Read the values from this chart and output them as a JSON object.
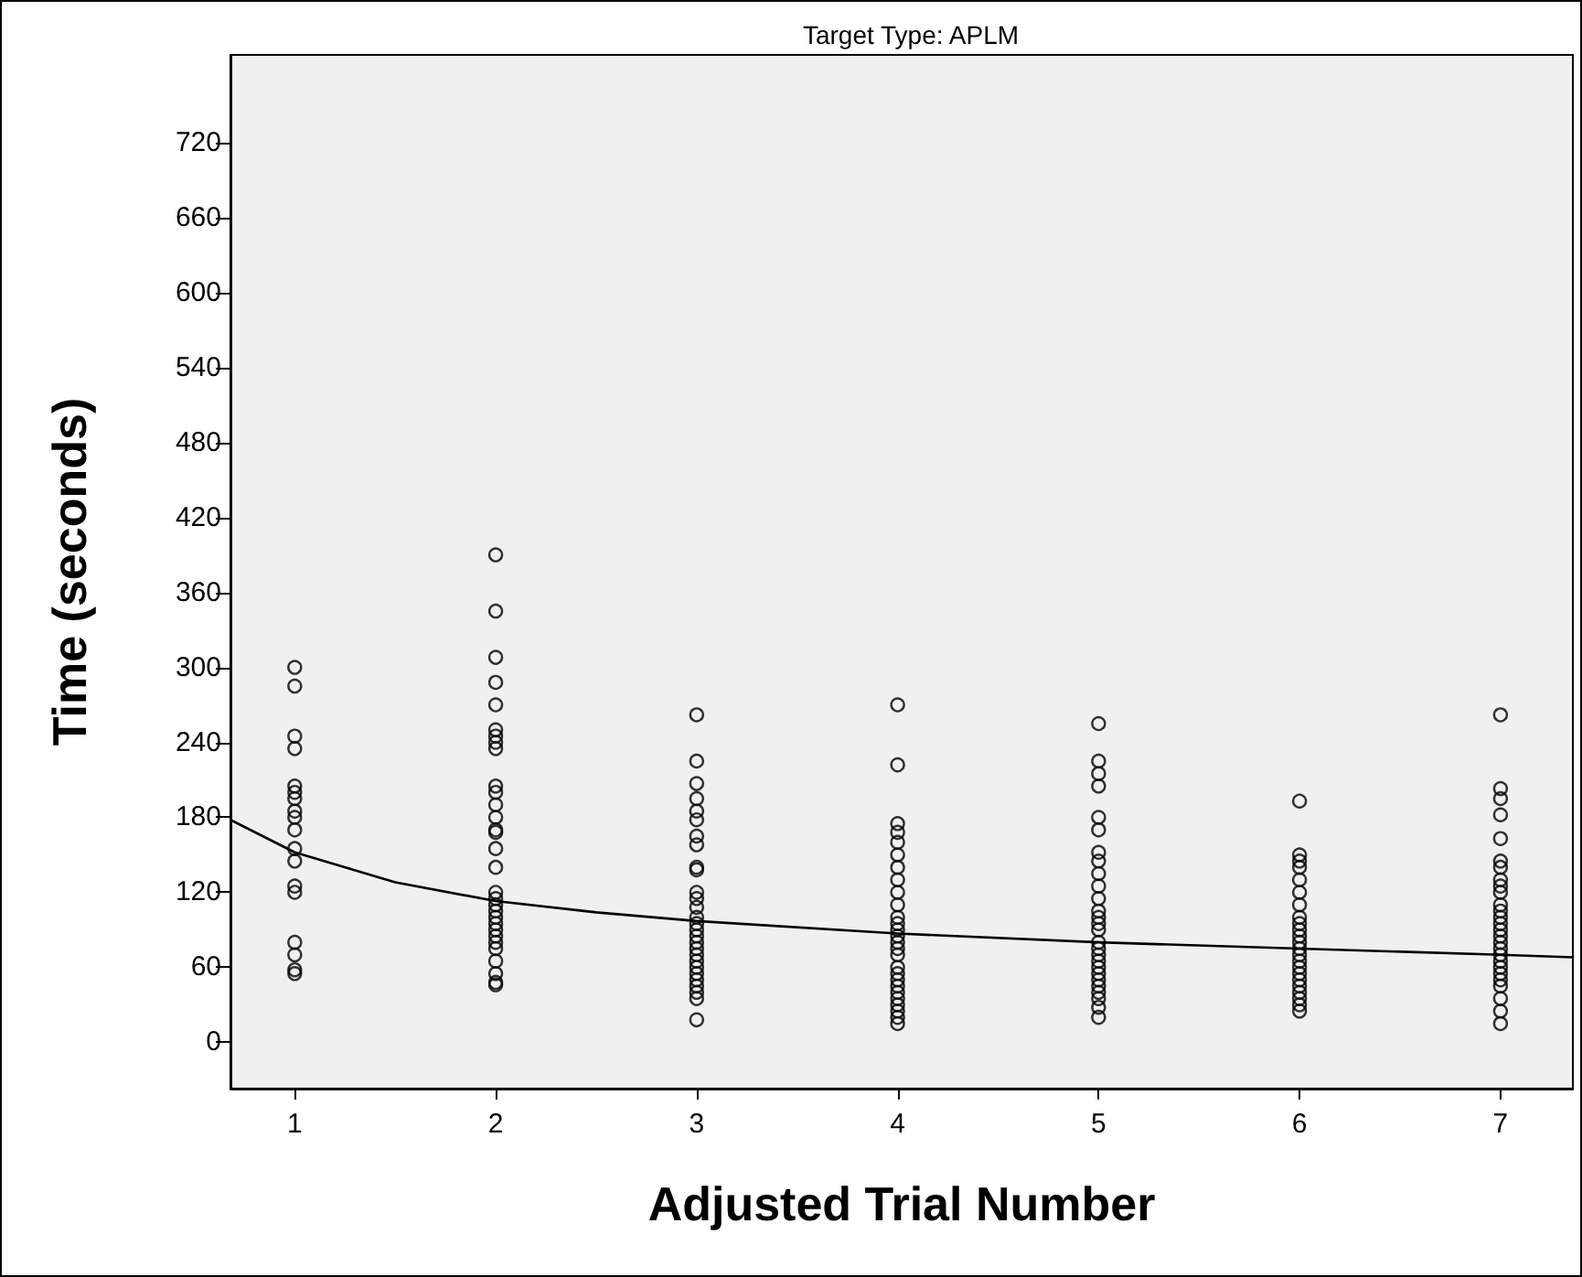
{
  "chart_data": {
    "type": "scatter",
    "title": "Target Type: APLM",
    "xlabel": "Adjusted Trial Number",
    "ylabel": "Time (seconds)",
    "series": [
      {
        "color": "#000000",
        "x": [
          1,
          1,
          1,
          1,
          1,
          1,
          1,
          1,
          1,
          1,
          1,
          1,
          1,
          1,
          1,
          1,
          1,
          1
        ],
        "values": [
          300,
          285,
          245,
          235,
          205,
          200,
          195,
          185,
          180,
          170,
          155,
          145,
          125,
          120,
          80,
          70,
          58,
          55
        ]
      },
      {
        "color": "#000000",
        "x": [
          2,
          2,
          2,
          2,
          2,
          2,
          2,
          2,
          2,
          2,
          2,
          2,
          2,
          2,
          2,
          2,
          2,
          2,
          2,
          2,
          2,
          2,
          2,
          2,
          2,
          2,
          2,
          2,
          2,
          2,
          2
        ],
        "values": [
          390,
          345,
          308,
          288,
          270,
          250,
          245,
          240,
          235,
          205,
          200,
          190,
          180,
          170,
          168,
          155,
          140,
          120,
          115,
          110,
          105,
          100,
          95,
          90,
          85,
          80,
          75,
          65,
          55,
          48,
          46
        ]
      },
      {
        "color": "#000000",
        "x": [
          3,
          3,
          3,
          3,
          3,
          3,
          3,
          3,
          3,
          3,
          3,
          3,
          3,
          3,
          3,
          3,
          3,
          3,
          3,
          3,
          3,
          3,
          3,
          3,
          3,
          3,
          3,
          3
        ],
        "values": [
          262,
          225,
          207,
          195,
          185,
          178,
          165,
          158,
          140,
          138,
          120,
          115,
          108,
          100,
          95,
          90,
          85,
          80,
          75,
          70,
          65,
          60,
          55,
          50,
          45,
          40,
          35,
          18
        ]
      },
      {
        "color": "#000000",
        "x": [
          4,
          4,
          4,
          4,
          4,
          4,
          4,
          4,
          4,
          4,
          4,
          4,
          4,
          4,
          4,
          4,
          4,
          4,
          4,
          4,
          4,
          4,
          4,
          4,
          4,
          4,
          4
        ],
        "values": [
          270,
          222,
          175,
          168,
          160,
          150,
          140,
          130,
          120,
          110,
          100,
          95,
          90,
          85,
          80,
          75,
          70,
          60,
          55,
          50,
          45,
          40,
          35,
          30,
          25,
          20,
          15
        ]
      },
      {
        "color": "#000000",
        "x": [
          5,
          5,
          5,
          5,
          5,
          5,
          5,
          5,
          5,
          5,
          5,
          5,
          5,
          5,
          5,
          5,
          5,
          5,
          5,
          5,
          5,
          5,
          5,
          5,
          5,
          5,
          5
        ],
        "values": [
          255,
          225,
          215,
          205,
          180,
          170,
          152,
          145,
          135,
          125,
          115,
          105,
          100,
          95,
          90,
          80,
          75,
          70,
          65,
          60,
          55,
          50,
          45,
          40,
          35,
          28,
          20
        ]
      },
      {
        "color": "#000000",
        "x": [
          6,
          6,
          6,
          6,
          6,
          6,
          6,
          6,
          6,
          6,
          6,
          6,
          6,
          6,
          6,
          6,
          6,
          6,
          6,
          6,
          6,
          6,
          6
        ],
        "values": [
          193,
          150,
          145,
          140,
          130,
          120,
          110,
          100,
          95,
          90,
          85,
          80,
          75,
          70,
          65,
          60,
          55,
          50,
          45,
          40,
          35,
          30,
          25
        ]
      },
      {
        "color": "#000000",
        "x": [
          7,
          7,
          7,
          7,
          7,
          7,
          7,
          7,
          7,
          7,
          7,
          7,
          7,
          7,
          7,
          7,
          7,
          7,
          7,
          7,
          7,
          7,
          7,
          7,
          7,
          7,
          7
        ],
        "values": [
          262,
          203,
          195,
          182,
          163,
          145,
          140,
          130,
          125,
          120,
          110,
          105,
          100,
          95,
          90,
          85,
          80,
          75,
          70,
          65,
          60,
          55,
          50,
          45,
          35,
          25,
          15
        ]
      },
      {
        "type": "line",
        "color": "#000000",
        "marker": "none",
        "x": [
          0.68,
          1,
          1.5,
          2,
          2.5,
          3,
          4,
          5,
          6,
          7,
          7.36
        ],
        "values": [
          178,
          152,
          128,
          113,
          104,
          97,
          87,
          80,
          75,
          70,
          68
        ]
      }
    ],
    "marker": "circle",
    "line_style": "solid",
    "grid": false,
    "xlim": [
      0.68,
      7.36
    ],
    "xticks": [
      1,
      2,
      3,
      4,
      5,
      6,
      7
    ],
    "ylim": [
      -37,
      790
    ],
    "yticks": [
      0,
      60,
      120,
      180,
      240,
      300,
      360,
      420,
      480,
      540,
      600,
      660,
      720
    ]
  }
}
